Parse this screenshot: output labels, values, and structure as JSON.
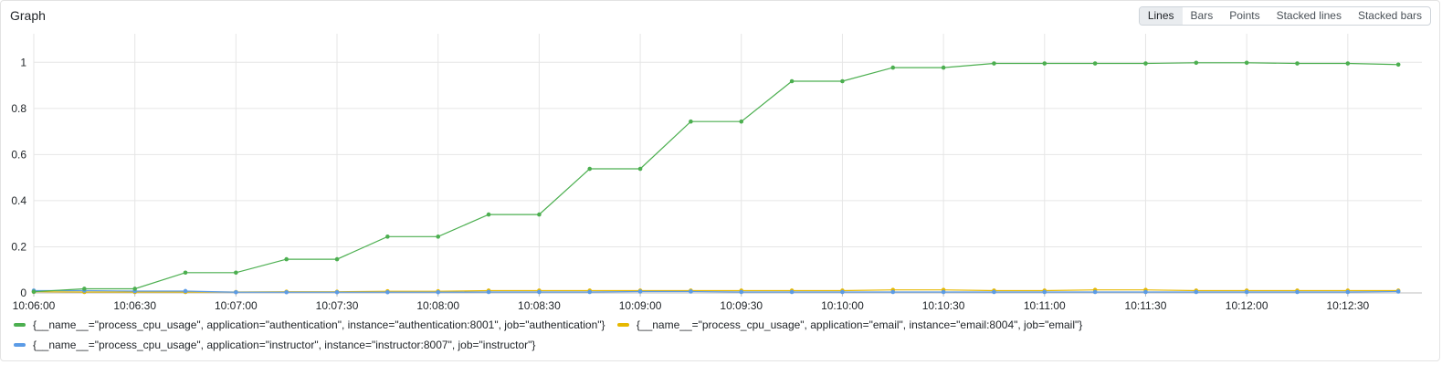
{
  "panel": {
    "title": "Graph",
    "view_modes": [
      "Lines",
      "Bars",
      "Points",
      "Stacked lines",
      "Stacked bars"
    ],
    "active_mode": "Lines"
  },
  "chart_data": {
    "type": "line",
    "title": "",
    "xlabel": "",
    "ylabel": "",
    "grid": true,
    "legend_position": "bottom",
    "ylim": [
      0,
      1.1
    ],
    "xlim": [
      "10:06:00",
      "10:12:52"
    ],
    "x_tick_labels": [
      "10:06:00",
      "10:06:30",
      "10:07:00",
      "10:07:30",
      "10:08:00",
      "10:08:30",
      "10:09:00",
      "10:09:30",
      "10:10:00",
      "10:10:30",
      "10:11:00",
      "10:11:30",
      "10:12:00",
      "10:12:30"
    ],
    "y_tick_labels": [
      "0",
      "0.2",
      "0.4",
      "0.6",
      "0.8",
      "1"
    ],
    "x": [
      "10:06:00",
      "10:06:15",
      "10:06:30",
      "10:06:45",
      "10:07:00",
      "10:07:15",
      "10:07:30",
      "10:07:45",
      "10:08:00",
      "10:08:15",
      "10:08:30",
      "10:08:45",
      "10:09:00",
      "10:09:15",
      "10:09:30",
      "10:09:45",
      "10:10:00",
      "10:10:15",
      "10:10:30",
      "10:10:45",
      "10:11:00",
      "10:11:15",
      "10:11:30",
      "10:11:45",
      "10:12:00",
      "10:12:15",
      "10:12:30",
      "10:12:45"
    ],
    "series": [
      {
        "name": "{__name__=\"process_cpu_usage\", application=\"authentication\", instance=\"authentication:8001\", job=\"authentication\"}",
        "color": "#4caf50",
        "values": [
          0.005,
          0.018,
          0.018,
          0.088,
          0.088,
          0.146,
          0.146,
          0.244,
          0.244,
          0.34,
          0.34,
          0.538,
          0.538,
          0.743,
          0.743,
          0.918,
          0.918,
          0.977,
          0.977,
          0.995,
          0.995,
          0.995,
          0.995,
          0.998,
          0.998,
          0.995,
          0.995,
          0.99
        ]
      },
      {
        "name": "{__name__=\"process_cpu_usage\", application=\"email\", instance=\"email:8004\", job=\"email\"}",
        "color": "#e6b800",
        "values": [
          0.005,
          0.004,
          0.004,
          0.004,
          0.004,
          0.005,
          0.005,
          0.007,
          0.007,
          0.01,
          0.01,
          0.01,
          0.01,
          0.01,
          0.01,
          0.01,
          0.01,
          0.013,
          0.013,
          0.01,
          0.01,
          0.013,
          0.013,
          0.01,
          0.01,
          0.01,
          0.01,
          0.01
        ]
      },
      {
        "name": "{__name__=\"process_cpu_usage\", application=\"instructor\", instance=\"instructor:8007\", job=\"instructor\"}",
        "color": "#5b9be6",
        "values": [
          0.01,
          0.01,
          0.008,
          0.008,
          0.003,
          0.003,
          0.003,
          0.003,
          0.003,
          0.004,
          0.004,
          0.004,
          0.006,
          0.006,
          0.004,
          0.004,
          0.004,
          0.004,
          0.004,
          0.004,
          0.004,
          0.004,
          0.004,
          0.004,
          0.004,
          0.004,
          0.004,
          0.006
        ]
      }
    ]
  }
}
